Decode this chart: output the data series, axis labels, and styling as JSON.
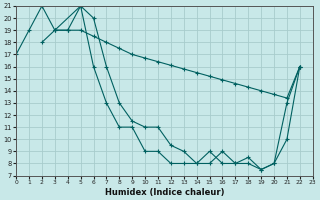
{
  "xlabel": "Humidex (Indice chaleur)",
  "xlim": [
    0,
    23
  ],
  "ylim": [
    7,
    21
  ],
  "yticks": [
    7,
    8,
    9,
    10,
    11,
    12,
    13,
    14,
    15,
    16,
    17,
    18,
    19,
    20,
    21
  ],
  "xticks": [
    0,
    1,
    2,
    3,
    4,
    5,
    6,
    7,
    8,
    9,
    10,
    11,
    12,
    13,
    14,
    15,
    16,
    17,
    18,
    19,
    20,
    21,
    22,
    23
  ],
  "bg_color": "#c8e8e8",
  "grid_color": "#a8cccc",
  "line_color": "#006060",
  "series": [
    {
      "comment": "short zigzag: 0=17, 1=19, 2=21, 3=19, 4=19",
      "x": [
        0,
        1,
        2,
        3,
        4
      ],
      "y": [
        17,
        19,
        21,
        19,
        19
      ]
    },
    {
      "x": [
        2,
        3,
        4,
        5,
        6,
        7,
        8,
        9,
        10,
        11,
        12,
        13,
        14,
        15,
        16,
        17,
        18,
        19,
        20,
        21,
        22
      ],
      "y": [
        18,
        19,
        19,
        19,
        18.5,
        18,
        17.5,
        17,
        16.7,
        16.4,
        16.1,
        15.8,
        15.5,
        15.2,
        14.9,
        14.6,
        14.3,
        14,
        13.7,
        13.4,
        16
      ]
    },
    {
      "x": [
        3,
        5,
        6,
        7,
        8,
        9,
        10,
        11,
        12,
        13,
        14,
        15,
        16,
        17,
        18,
        19,
        20,
        21,
        22
      ],
      "y": [
        19,
        21,
        16,
        13,
        11,
        11,
        9,
        9,
        8,
        8,
        8,
        9,
        8,
        8,
        8,
        7.5,
        8,
        10,
        16
      ]
    },
    {
      "x": [
        4,
        5,
        6,
        7,
        8,
        9,
        10,
        11,
        12,
        13,
        14,
        15,
        16,
        17,
        18,
        19,
        20,
        21,
        22
      ],
      "y": [
        19,
        21,
        20,
        16,
        13,
        11.5,
        11,
        11,
        9.5,
        9,
        8,
        8,
        9,
        8,
        8.5,
        7.5,
        8,
        13,
        16
      ]
    }
  ]
}
